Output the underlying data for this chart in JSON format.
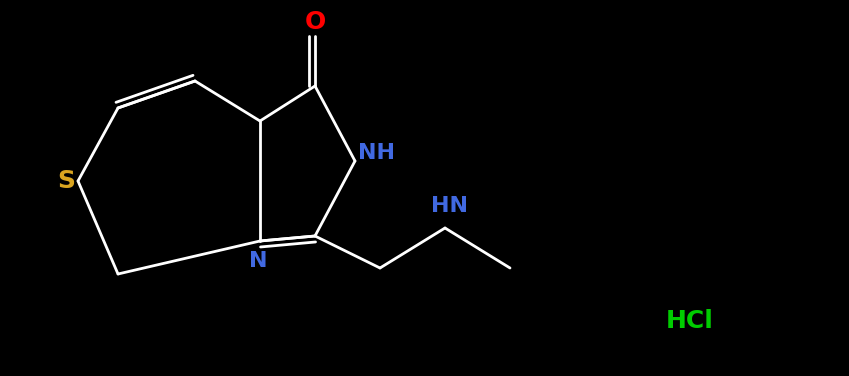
{
  "background_color": "#000000",
  "fig_width": 8.49,
  "fig_height": 3.76,
  "dpi": 100,
  "bond_color": "#FFFFFF",
  "bond_lw": 2.0,
  "S_color": "#DAA520",
  "O_color": "#FF0000",
  "N_color": "#4169E1",
  "HCl_color": "#00CC00",
  "xlim": [
    0.0,
    8.49
  ],
  "ylim": [
    0.0,
    3.76
  ]
}
